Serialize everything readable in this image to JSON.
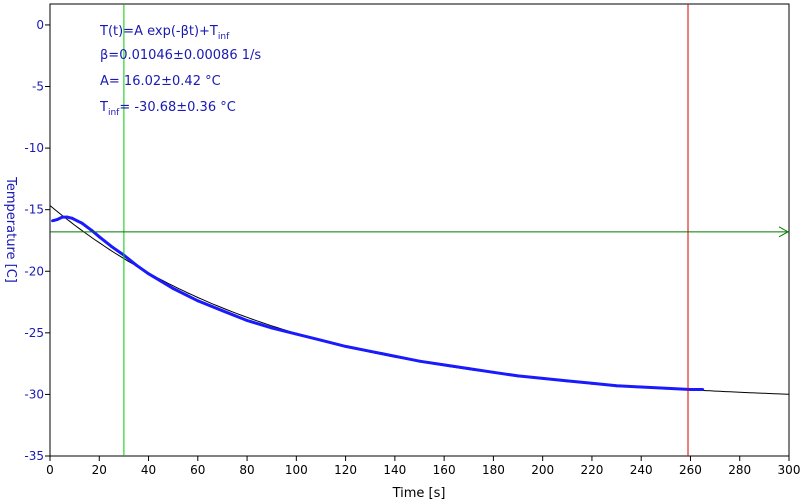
{
  "chart_data": {
    "type": "line",
    "xlabel": "Time [s]",
    "ylabel": "Temperature [C]",
    "xlim": [
      0,
      300
    ],
    "ylim": [
      -35,
      1.7
    ],
    "x_ticks": [
      "0",
      "20",
      "40",
      "60",
      "80",
      "100",
      "120",
      "140",
      "160",
      "180",
      "200",
      "220",
      "240",
      "260",
      "280",
      "300"
    ],
    "y_ticks": [
      "0",
      "-5",
      "-10",
      "-15",
      "-20",
      "-25",
      "-30",
      "-35"
    ],
    "annotations": {
      "model_prefix": "T(t)=A exp(-βt)+T",
      "model_sub": "inf",
      "beta": "β=0.01046±0.00086 1/s",
      "amp": "A= 16.02±0.42 °C",
      "tinf_prefix": "T",
      "tinf_sub": "inf",
      "tinf_value": "= -30.68±0.36 °C"
    },
    "fit": {
      "A": 16.02,
      "beta": 0.01046,
      "T_inf": -30.68
    },
    "series": [
      {
        "kind": "measured",
        "color": "#1a1aff",
        "x": [
          1,
          3,
          5,
          7,
          9,
          11,
          13,
          15,
          17,
          20,
          25,
          30,
          35,
          40,
          45,
          50,
          60,
          70,
          80,
          90,
          100,
          110,
          120,
          130,
          140,
          150,
          160,
          170,
          180,
          190,
          200,
          210,
          220,
          230,
          240,
          250,
          260,
          265
        ],
        "y": [
          -15.9,
          -15.8,
          -15.6,
          -15.6,
          -15.7,
          -15.9,
          -16.1,
          -16.4,
          -16.7,
          -17.2,
          -18.0,
          -18.7,
          -19.5,
          -20.2,
          -20.8,
          -21.4,
          -22.4,
          -23.2,
          -24.0,
          -24.6,
          -25.1,
          -25.6,
          -26.1,
          -26.5,
          -26.9,
          -27.3,
          -27.6,
          -27.9,
          -28.2,
          -28.5,
          -28.7,
          -28.9,
          -29.1,
          -29.3,
          -29.4,
          -29.5,
          -29.6,
          -29.6
        ]
      },
      {
        "kind": "fit",
        "color": "#000000",
        "x": [
          0,
          300
        ]
      }
    ],
    "markers": [
      {
        "kind": "vertical",
        "x": 30,
        "color": "#00cc00"
      },
      {
        "kind": "vertical",
        "x": 259,
        "color": "#d40000"
      },
      {
        "kind": "horizontal-arrow",
        "y": -16.8,
        "color": "#007700"
      }
    ],
    "colors": {
      "axis_text": "#1a1ab3",
      "xaxis_text": "#000000",
      "frame": "#000000"
    },
    "grid": false
  }
}
